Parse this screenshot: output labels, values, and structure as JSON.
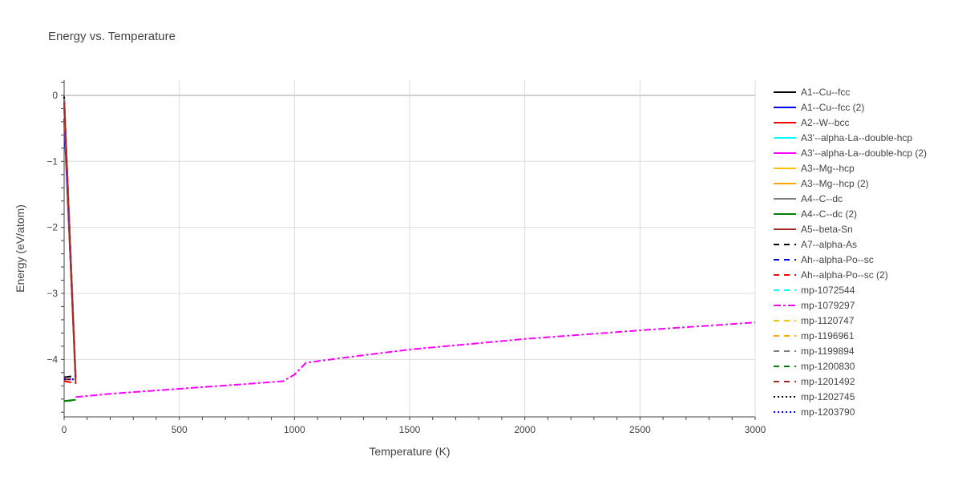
{
  "chart_data": {
    "type": "line",
    "title": "Energy vs. Temperature",
    "xlabel": "Temperature (K)",
    "ylabel": "Energy (eV/atom)",
    "xlim": [
      0,
      3000
    ],
    "ylim": [
      -4.87,
      0.23
    ],
    "x_ticks": [
      0,
      500,
      1000,
      1500,
      2000,
      2500,
      3000
    ],
    "y_ticks": [
      0,
      -1,
      -2,
      -3,
      -4
    ],
    "x_tick_labels": [
      "0",
      "500",
      "1000",
      "1500",
      "2000",
      "2500",
      "3000"
    ],
    "y_tick_labels": [
      "0",
      "−1",
      "−2",
      "−3",
      "−4"
    ],
    "grid": true,
    "legend_position": "right",
    "series": [
      {
        "name": "A1--Cu--fcc",
        "color": "#000000",
        "dash": "solid",
        "x": [
          0,
          50
        ],
        "y": [
          -0.02,
          -4.25
        ]
      },
      {
        "name": "A1--Cu--fcc (2)",
        "color": "#0000ff",
        "dash": "solid",
        "x": [
          0,
          50
        ],
        "y": [
          -0.35,
          -4.3
        ]
      },
      {
        "name": "A2--W--bcc",
        "color": "#ff0000",
        "dash": "solid",
        "x": [
          0,
          50
        ],
        "y": [
          -0.05,
          -4.3
        ]
      },
      {
        "name": "A3'--alpha-La--double-hcp",
        "color": "#00ffff",
        "dash": "solid",
        "x": [
          0,
          50
        ],
        "y": [
          -0.1,
          -4.28
        ]
      },
      {
        "name": "A3'--alpha-La--double-hcp (2)",
        "color": "#ff00ff",
        "dash": "solid",
        "x": [
          0,
          50
        ],
        "y": [
          -0.2,
          -4.3
        ]
      },
      {
        "name": "A3--Mg--hcp",
        "color": "#ffbf00",
        "dash": "solid",
        "x": [
          0,
          50
        ],
        "y": [
          -0.12,
          -4.28
        ]
      },
      {
        "name": "A3--Mg--hcp (2)",
        "color": "#ffa500",
        "dash": "solid",
        "x": [
          0,
          50
        ],
        "y": [
          -0.15,
          -4.3
        ]
      },
      {
        "name": "A4--C--dc",
        "color": "#808080",
        "dash": "solid",
        "x": [
          0,
          50
        ],
        "y": [
          -0.05,
          -4.28
        ]
      },
      {
        "name": "A4--C--dc (2)",
        "color": "#008000",
        "dash": "solid",
        "x": [
          0,
          50
        ],
        "y": [
          -4.63,
          -4.61
        ]
      },
      {
        "name": "A5--beta-Sn",
        "color": "#a52a2a",
        "dash": "solid",
        "x": [
          0,
          50
        ],
        "y": [
          -0.1,
          -4.37
        ]
      },
      {
        "name": "A7--alpha-As",
        "color": "#000000",
        "dash": "dash",
        "x": [
          0,
          50
        ],
        "y": [
          -4.27,
          -4.25
        ]
      },
      {
        "name": "Ah--alpha-Po--sc",
        "color": "#0000ff",
        "dash": "dash",
        "x": [
          0,
          50
        ],
        "y": [
          -4.3,
          -4.3
        ]
      },
      {
        "name": "Ah--alpha-Po--sc (2)",
        "color": "#ff0000",
        "dash": "dash",
        "x": [
          0,
          50
        ],
        "y": [
          -4.33,
          -4.36
        ]
      },
      {
        "name": "mp-1072544",
        "color": "#00ffff",
        "dash": "dash",
        "x": [
          0,
          50
        ],
        "y": [
          -4.3,
          -4.3
        ]
      },
      {
        "name": "mp-1079297",
        "color": "#ff00ff",
        "dash": "dashdot",
        "x": [
          50,
          200,
          400,
          600,
          800,
          950,
          1000,
          1050,
          1200,
          1500,
          2000,
          2500,
          3000
        ],
        "y": [
          -4.57,
          -4.52,
          -4.47,
          -4.42,
          -4.37,
          -4.33,
          -4.23,
          -4.05,
          -3.98,
          -3.85,
          -3.69,
          -3.56,
          -3.44
        ]
      },
      {
        "name": "mp-1120747",
        "color": "#ffbf00",
        "dash": "dash",
        "x": [
          0,
          50
        ],
        "y": [
          -4.3,
          -4.3
        ]
      },
      {
        "name": "mp-1196961",
        "color": "#ffa500",
        "dash": "dash",
        "x": [
          0,
          50
        ],
        "y": [
          -4.3,
          -4.3
        ]
      },
      {
        "name": "mp-1199894",
        "color": "#808080",
        "dash": "dash",
        "x": [
          0,
          50
        ],
        "y": [
          -4.3,
          -4.3
        ]
      },
      {
        "name": "mp-1200830",
        "color": "#008000",
        "dash": "dash",
        "x": [
          0,
          50
        ],
        "y": [
          -4.63,
          -4.62
        ]
      },
      {
        "name": "mp-1201492",
        "color": "#a52a2a",
        "dash": "dash",
        "x": [
          0,
          50
        ],
        "y": [
          -4.3,
          -4.3
        ]
      },
      {
        "name": "mp-1202745",
        "color": "#000000",
        "dash": "dot",
        "x": [
          0,
          50
        ],
        "y": [
          -4.3,
          -4.3
        ]
      },
      {
        "name": "mp-1203790",
        "color": "#0000ff",
        "dash": "dot",
        "x": [
          0,
          50
        ],
        "y": [
          -4.3,
          -4.3
        ]
      }
    ]
  }
}
